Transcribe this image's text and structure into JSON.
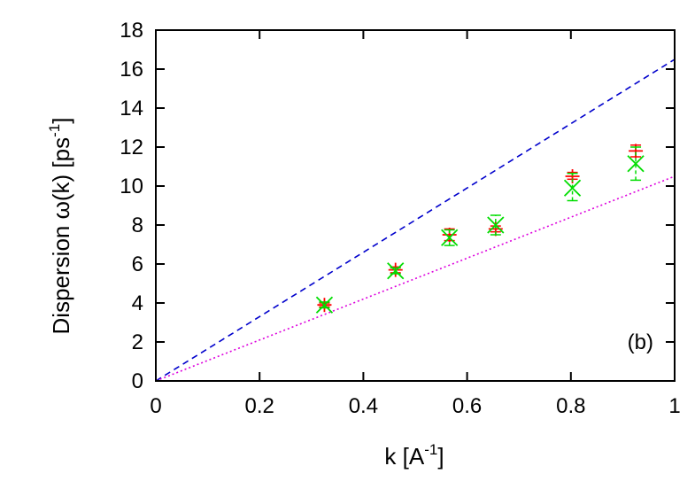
{
  "chart_data": {
    "type": "scatter",
    "xlabel": "k [A",
    "xlabel_sup": "-1",
    "xlabel_end": "]",
    "ylabel": "Dispersion ω(k) [ps",
    "ylabel_sup": "-1",
    "ylabel_end": "]",
    "panel_label": "(b)",
    "xlim": [
      0,
      1
    ],
    "ylim": [
      0,
      18
    ],
    "x_ticks": [
      "0",
      "0.2",
      "0.4",
      "0.6",
      "0.8",
      "1"
    ],
    "x_tick_values": [
      0,
      0.2,
      0.4,
      0.6,
      0.8,
      1
    ],
    "y_ticks": [
      "0",
      "2",
      "4",
      "6",
      "8",
      "10",
      "12",
      "14",
      "16",
      "18"
    ],
    "y_tick_values": [
      0,
      2,
      4,
      6,
      8,
      10,
      12,
      14,
      16,
      18
    ],
    "grid": false,
    "series": [
      {
        "marker": "plus",
        "color": "#ff0000",
        "x": [
          0.325,
          0.462,
          0.566,
          0.655,
          0.803,
          0.925
        ],
        "y": [
          3.9,
          5.7,
          7.5,
          7.8,
          10.5,
          11.8
        ],
        "yerr_low": [
          3.8,
          5.55,
          7.2,
          7.65,
          10.35,
          11.5
        ],
        "yerr_high": [
          4.0,
          5.85,
          7.8,
          7.95,
          10.7,
          12.1
        ]
      },
      {
        "marker": "cross",
        "color": "#00dd00",
        "x": [
          0.325,
          0.462,
          0.566,
          0.655,
          0.803,
          0.925
        ],
        "y": [
          3.9,
          5.65,
          7.35,
          8.0,
          9.9,
          11.15
        ],
        "yerr_low": [
          3.75,
          5.5,
          6.95,
          7.5,
          9.25,
          10.3
        ],
        "yerr_high": [
          4.05,
          5.8,
          7.75,
          8.5,
          10.65,
          12.0
        ]
      }
    ],
    "lines": [
      {
        "style": "dashed",
        "color": "#0000cc",
        "x": [
          0,
          1
        ],
        "y": [
          0,
          16.5
        ]
      },
      {
        "style": "dotted",
        "color": "#dd00dd",
        "x": [
          0,
          1
        ],
        "y": [
          0,
          10.5
        ]
      }
    ]
  }
}
